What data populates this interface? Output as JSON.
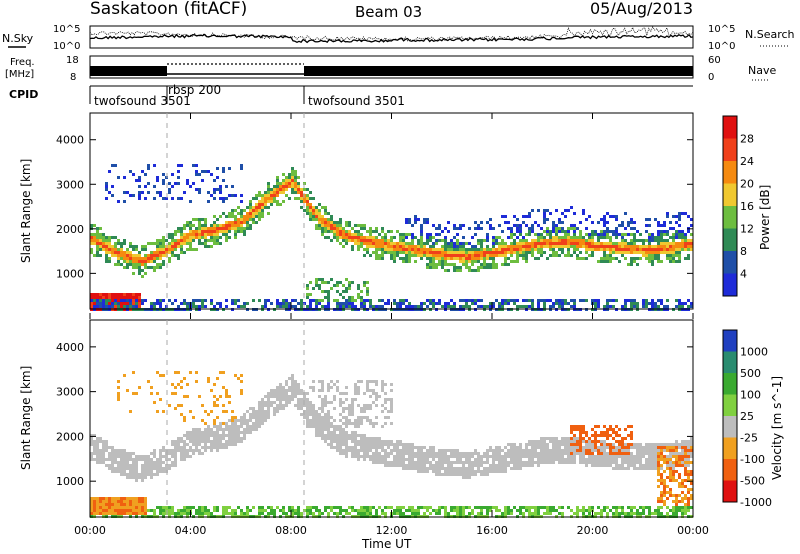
{
  "header": {
    "title": "Saskatoon (fitACF)",
    "beam": "Beam 03",
    "date": "05/Aug/2013"
  },
  "noise_panel": {
    "left_label": "N.Sky",
    "right_label": "N.Search",
    "left_ticks": [
      "10^5",
      "10^0"
    ],
    "right_ticks": [
      "10^5",
      "10^0"
    ]
  },
  "freq_panel": {
    "left_label_1": "Freq.",
    "left_label_2": "[MHz]",
    "right_label": "Nave",
    "left_ticks": [
      "18",
      "8"
    ],
    "right_ticks": [
      "60",
      "0"
    ]
  },
  "cpid_panel": {
    "label": "CPID",
    "segments": [
      {
        "start_hour": 0.0,
        "end_hour": 2.85,
        "name": "twofsound 3501"
      },
      {
        "start_hour": 2.85,
        "end_hour": 8.5,
        "name": "rbsp 200"
      },
      {
        "start_hour": 8.5,
        "end_hour": 24.0,
        "name": "twofsound 3501"
      }
    ]
  },
  "chart_data": [
    {
      "type": "heatmap",
      "name": "power",
      "ylabel": "Slant Range [km]",
      "xlabel": "",
      "y_ticks": [
        "1000",
        "2000",
        "3000",
        "4000"
      ],
      "ylim": [
        200,
        4600
      ],
      "xlim": [
        0,
        24
      ],
      "colorbar_label": "Power [dB]",
      "colorbar_ticks": [
        "4",
        "8",
        "12",
        "16",
        "20",
        "24",
        "28"
      ],
      "colorbar_colors": [
        "#1e2bd8",
        "#1f4fa8",
        "#2f8a55",
        "#6dbd3f",
        "#f0c830",
        "#f58a10",
        "#f0401a",
        "#e01010"
      ],
      "dashed_lines_hours": [
        2.85,
        8.5
      ],
      "bands": [
        {
          "center_km": [
            1800,
            1500,
            1300,
            1550,
            1900,
            2000,
            2200,
            2700,
            3100,
            2300,
            1900,
            1750,
            1650,
            1550,
            1450,
            1400,
            1500,
            1600,
            1700,
            1750,
            1650,
            1600,
            1550,
            1600,
            1700
          ],
          "level": "high"
        },
        {
          "ranges_km": [
            [
              250,
              600
            ]
          ],
          "hours": [
            0,
            2
          ],
          "level": "very-high"
        },
        {
          "ranges_km": [
            [
              2600,
              3500
            ]
          ],
          "hours": [
            0.5,
            6
          ],
          "level": "low"
        }
      ]
    },
    {
      "type": "heatmap",
      "name": "velocity",
      "ylabel": "Slant Range [km]",
      "xlabel": "Time UT",
      "x_ticks": [
        "00:00",
        "04:00",
        "08:00",
        "12:00",
        "16:00",
        "20:00",
        "00:00"
      ],
      "y_ticks": [
        "1000",
        "2000",
        "3000",
        "4000"
      ],
      "ylim": [
        200,
        4600
      ],
      "xlim": [
        0,
        24
      ],
      "colorbar_label": "Velocity [m s^-1]",
      "colorbar_ticks": [
        "1000",
        "500",
        "100",
        "25",
        "-25",
        "-100",
        "-500",
        "-1000"
      ],
      "colorbar_colors": [
        "#2040c0",
        "#2a8c70",
        "#3aaa30",
        "#80d040",
        "#bdbdbd",
        "#f0a020",
        "#f06010",
        "#e01010"
      ],
      "dashed_lines_hours": [
        2.85,
        8.5
      ]
    }
  ]
}
